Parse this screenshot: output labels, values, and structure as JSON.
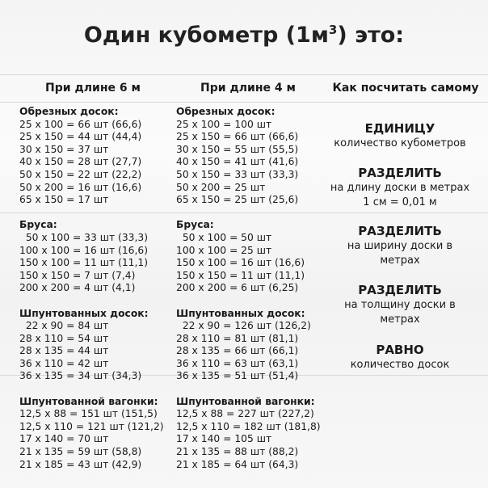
{
  "title": "Один кубометр (1м",
  "title_sup": "3",
  "title_end": ") это:",
  "columns": [
    {
      "header": "При длине 6 м",
      "sections": [
        {
          "title": "Обрезных досок:",
          "rows": [
            "25 x 100 = 66 шт (66,6)",
            "25 x 150 = 44 шт (44,4)",
            "30 x 150 = 37 шт",
            "40 x 150 = 28 шт (27,7)",
            "50 x 150 = 22 шт (22,2)",
            "50 x 200 = 16 шт (16,6)",
            "65 x 150 = 17 шт"
          ]
        },
        {
          "title": "Бруса:",
          "rows": [
            "  50 x 100 = 33 шт (33,3)",
            "100 x 100 = 16 шт (16,6)",
            "150 x 100 = 11 шт (11,1)",
            "150 x 150 = 7 шт (7,4)",
            "200 x 200 = 4 шт (4,1)"
          ]
        },
        {
          "title": "Шпунтованных досок:",
          "rows": [
            "  22 x 90 = 84 шт",
            "28 x 110 = 54 шт",
            "28 x 135 = 44 шт",
            "36 x 110 = 42 шт",
            "36 x 135 = 34 шт (34,3)"
          ]
        },
        {
          "title": "Шпунтованной вагонки:",
          "rows": [
            "12,5 x 88 = 151 шт (151,5)",
            "12,5 x 110 = 121 шт (121,2)",
            "17 x 140 = 70 шт",
            "21 x 135 = 59 шт (58,8)",
            "21 x 185 = 43 шт (42,9)"
          ]
        }
      ]
    },
    {
      "header": "При длине 4 м",
      "sections": [
        {
          "title": "Обрезных досок:",
          "rows": [
            "25 x 100 = 100 шт",
            "25 x 150 = 66 шт (66,6)",
            "30 x 150 = 55 шт (55,5)",
            "40 x 150 = 41 шт (41,6)",
            "50 x 150 = 33 шт (33,3)",
            "50 x 200 = 25 шт",
            "65 x 150 = 25 шт (25,6)"
          ]
        },
        {
          "title": "Бруса:",
          "rows": [
            "  50 x 100 = 50 шт",
            "100 x 100 = 25 шт",
            "150 x 100 = 16 шт (16,6)",
            "150 x 150 = 11 шт (11,1)",
            "200 x 200 = 6 шт (6,25)"
          ]
        },
        {
          "title": "Шпунтованных досок:",
          "rows": [
            "  22 x 90 = 126 шт (126,2)",
            "28 x 110 = 81 шт (81,1)",
            "28 x 135 = 66 шт (66,1)",
            "36 x 110 = 63 шт (63,1)",
            "36 x 135 = 51 шт (51,4)"
          ]
        },
        {
          "title": "Шпунтованной вагонки:",
          "rows": [
            "12,5 x 88 = 227 шт (227,2)",
            "12,5 x 110 = 182 шт (181,8)",
            "17 x 140 = 105 шт",
            "21 x 135 = 88 шт (88,2)",
            "21 x 185 = 64 шт (64,3)"
          ]
        }
      ]
    }
  ],
  "howto": {
    "header": "Как посчитать самому",
    "steps": [
      {
        "title": "ЕДИНИЦУ",
        "lines": [
          "количество кубометров"
        ]
      },
      {
        "title": "РАЗДЕЛИТЬ",
        "lines": [
          "на длину доски в метрах",
          "1 см = 0,01 м"
        ]
      },
      {
        "title": "РАЗДЕЛИТЬ",
        "lines": [
          "на ширину доски в",
          "метрах"
        ]
      },
      {
        "title": "РАЗДЕЛИТЬ",
        "lines": [
          "на толщину доски в",
          "метрах"
        ]
      },
      {
        "title": "РАВНО",
        "lines": [
          "количество досок"
        ]
      }
    ]
  }
}
